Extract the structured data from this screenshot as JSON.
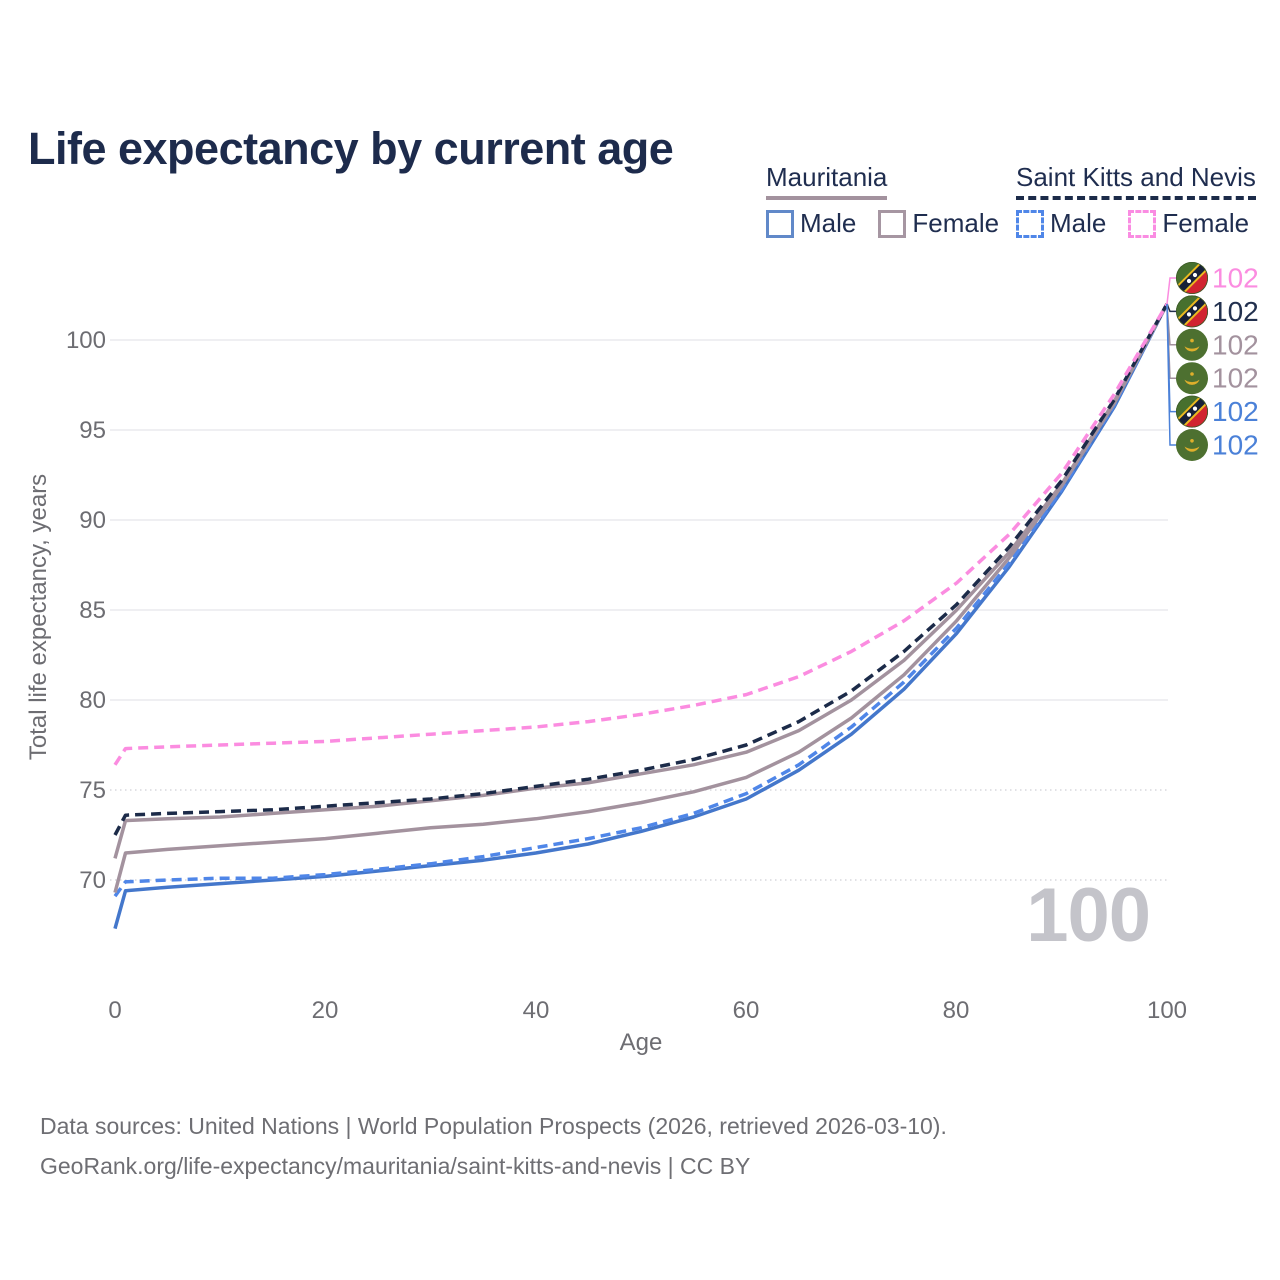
{
  "title": "Life expectancy by current age",
  "legend": {
    "mauritania": {
      "label": "Mauritania",
      "male": "Male",
      "female": "Female"
    },
    "saint_kitts": {
      "label": "Saint Kitts and Nevis",
      "male": "Male",
      "female": "Female"
    }
  },
  "axes": {
    "y_title": "Total life expectancy, years",
    "x_title": "Age",
    "y_ticks": [
      70,
      75,
      80,
      85,
      90,
      95,
      100
    ],
    "x_ticks": [
      0,
      20,
      40,
      60,
      80,
      100
    ]
  },
  "watermark": "100",
  "colors": {
    "title_text": "#1d2b4c",
    "axis_text": "#6d6d72",
    "grid_solid": "#e5e5e9",
    "grid_dotted": "#cfcfd5",
    "watermark": "#c4c4ca",
    "mauritania_country": "#a3929e",
    "saint_kitts_country": "#1c2b49",
    "male_solid_blue": "#4477cb",
    "male_dashed_blue": "#4f86e8",
    "female_pink": "#fb8ce0"
  },
  "end_labels": [
    {
      "series": "skn_female",
      "flag": "skn",
      "value": "102",
      "color": "#fb8ce0"
    },
    {
      "series": "skn_both",
      "flag": "skn",
      "value": "102",
      "color": "#22304e"
    },
    {
      "series": "mrt_female",
      "flag": "mrt",
      "value": "102",
      "color": "#a3929e"
    },
    {
      "series": "mrt_both",
      "flag": "mrt",
      "value": "102",
      "color": "#a3929e"
    },
    {
      "series": "skn_male",
      "flag": "skn",
      "value": "102",
      "color": "#4b81d8"
    },
    {
      "series": "mrt_male",
      "flag": "mrt",
      "value": "102",
      "color": "#4b81d8"
    }
  ],
  "footer": {
    "line1": "Data sources: United Nations | World Population Prospects (2026, retrieved 2026-03-10).",
    "line2": "GeoRank.org/life-expectancy/mauritania/saint-kitts-and-nevis | CC BY"
  },
  "chart_data": {
    "type": "line",
    "title": "Life expectancy by current age",
    "xlabel": "Age",
    "ylabel": "Total life expectancy, years",
    "xlim": [
      0,
      100
    ],
    "ylim": [
      67,
      103
    ],
    "grid": true,
    "legend_position": "top-right",
    "x": [
      0,
      1,
      5,
      10,
      15,
      20,
      25,
      30,
      35,
      40,
      45,
      50,
      55,
      60,
      65,
      70,
      75,
      80,
      85,
      90,
      95,
      100
    ],
    "series": [
      {
        "key": "mrt_male",
        "name": "Mauritania Male",
        "country": "Mauritania",
        "sex": "male",
        "style": "solid",
        "color": "#4477cb",
        "values": [
          67.3,
          69.4,
          69.6,
          69.8,
          70.0,
          70.2,
          70.5,
          70.8,
          71.1,
          71.5,
          72.0,
          72.7,
          73.5,
          74.5,
          76.1,
          78.1,
          80.6,
          83.7,
          87.4,
          91.6,
          96.3,
          102
        ]
      },
      {
        "key": "skn_male",
        "name": "Saint Kitts and Nevis Male",
        "country": "Saint Kitts and Nevis",
        "sex": "male",
        "style": "dashed",
        "color": "#4f86e8",
        "values": [
          69.1,
          69.9,
          70.0,
          70.1,
          70.1,
          70.3,
          70.6,
          70.9,
          71.3,
          71.8,
          72.3,
          72.9,
          73.7,
          74.8,
          76.4,
          78.5,
          81.0,
          84.0,
          87.6,
          91.7,
          96.4,
          102
        ]
      },
      {
        "key": "mrt_both",
        "name": "Mauritania Both sexes",
        "country": "Mauritania",
        "sex": "both",
        "style": "solid",
        "color": "#a3929e",
        "values": [
          69.3,
          71.5,
          71.7,
          71.9,
          72.1,
          72.3,
          72.6,
          72.9,
          73.1,
          73.4,
          73.8,
          74.3,
          74.9,
          75.7,
          77.1,
          79.0,
          81.4,
          84.4,
          87.9,
          91.9,
          96.5,
          102
        ]
      },
      {
        "key": "mrt_female",
        "name": "Mauritania Female",
        "country": "Mauritania",
        "sex": "female",
        "style": "solid",
        "color": "#a3929e",
        "values": [
          71.2,
          73.3,
          73.4,
          73.5,
          73.7,
          73.9,
          74.1,
          74.4,
          74.7,
          75.1,
          75.4,
          75.9,
          76.4,
          77.1,
          78.3,
          80.0,
          82.2,
          85.0,
          88.2,
          92.0,
          96.6,
          102
        ]
      },
      {
        "key": "skn_both",
        "name": "Saint Kitts and Nevis Both sexes",
        "country": "Saint Kitts and Nevis",
        "sex": "both",
        "style": "dashed",
        "color": "#1c2b49",
        "values": [
          72.5,
          73.6,
          73.7,
          73.8,
          73.9,
          74.1,
          74.3,
          74.5,
          74.8,
          75.2,
          75.6,
          76.1,
          76.7,
          77.5,
          78.8,
          80.5,
          82.7,
          85.3,
          88.5,
          92.2,
          96.7,
          102
        ]
      },
      {
        "key": "skn_female",
        "name": "Saint Kitts and Nevis Female",
        "country": "Saint Kitts and Nevis",
        "sex": "female",
        "style": "dashed",
        "color": "#fb8ce0",
        "values": [
          76.4,
          77.3,
          77.4,
          77.5,
          77.6,
          77.7,
          77.9,
          78.1,
          78.3,
          78.5,
          78.8,
          79.2,
          79.7,
          80.3,
          81.3,
          82.7,
          84.4,
          86.5,
          89.2,
          92.6,
          97.0,
          102
        ]
      }
    ]
  }
}
